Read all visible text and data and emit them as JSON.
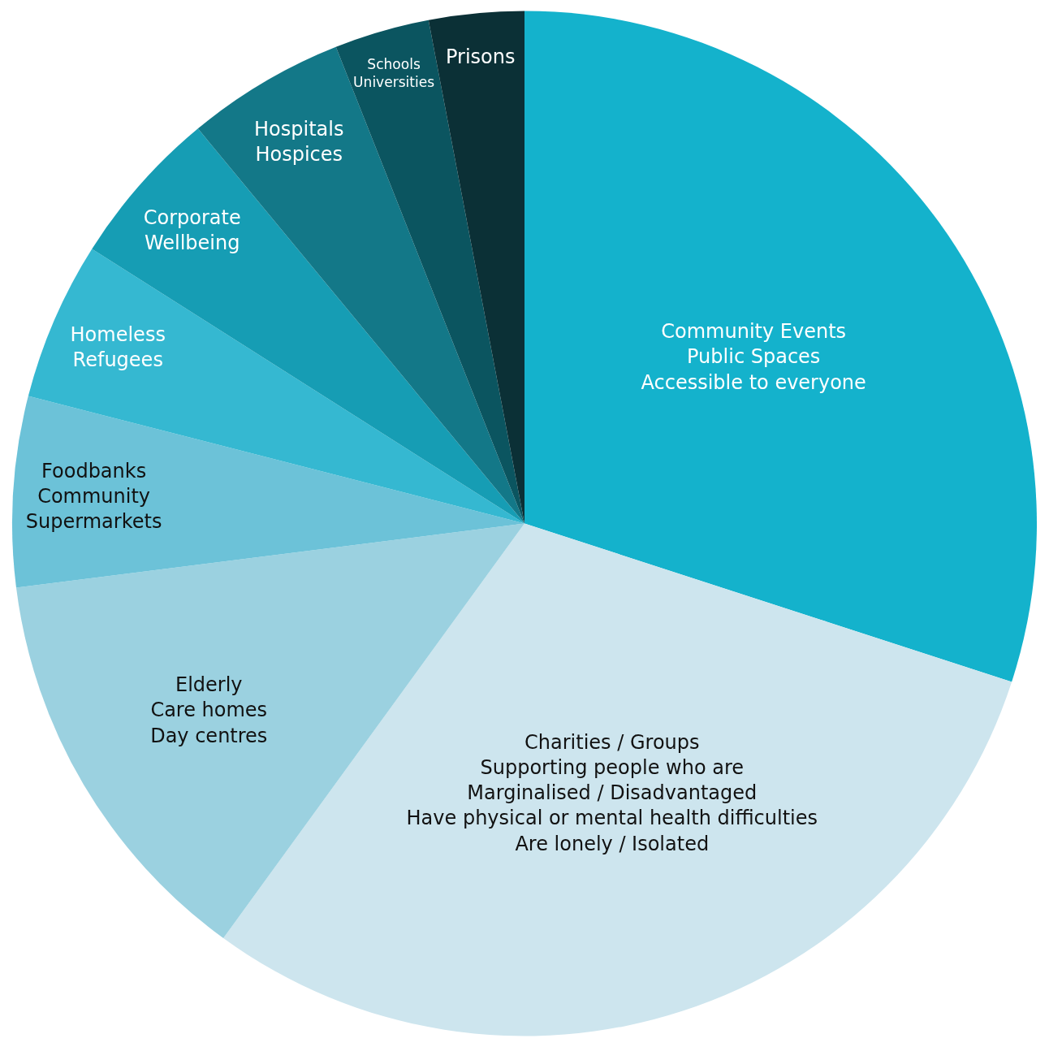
{
  "chart_data": {
    "type": "pie",
    "categories": [
      "Community Events\nPublic Spaces\nAccessible to everyone",
      "Charities / Groups\nSupporting people who are\nMarginalised / Disadvantaged\nHave physical or mental health difficulties\nAre lonely / Isolated",
      "Elderly\nCare homes\nDay centres",
      "Foodbanks\nCommunity\nSupermarkets",
      "Homeless\nRefugees",
      "Corporate\nWellbeing",
      "Hospitals\nHospices",
      "Schools\nUniversities",
      "Prisons"
    ],
    "values": [
      30,
      30,
      13,
      6,
      5,
      5,
      5,
      3,
      3
    ],
    "colors": [
      "#14b2cc",
      "#cde5ee",
      "#9bd1e0",
      "#6cc2d8",
      "#35b8d1",
      "#169db4",
      "#137888",
      "#0b5560",
      "#0b3036"
    ],
    "legend": false
  }
}
